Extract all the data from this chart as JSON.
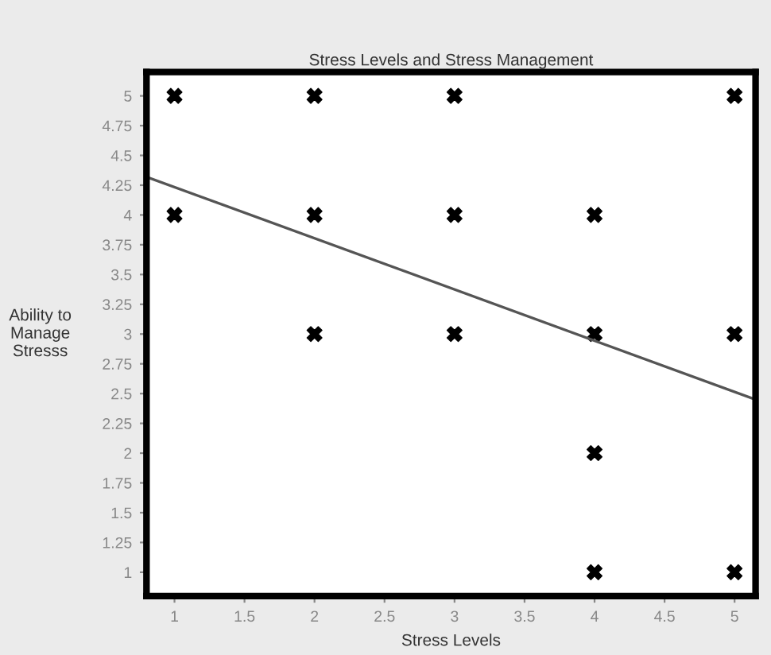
{
  "chart_data": {
    "type": "scatter",
    "title": "Stress Levels and Stress Management",
    "xlabel": "Stress Levels",
    "ylabel": "Ability to\nManage\nStresss",
    "grid": false,
    "legend": false,
    "xlim": [
      0.8,
      5.15
    ],
    "ylim": [
      0.8,
      5.2
    ],
    "xticks": [
      1,
      1.5,
      2,
      2.5,
      3,
      3.5,
      4,
      4.5,
      5
    ],
    "yticks": [
      1,
      1.25,
      1.5,
      1.75,
      2,
      2.25,
      2.5,
      2.75,
      3,
      3.25,
      3.5,
      3.75,
      4,
      4.25,
      4.5,
      4.75,
      5
    ],
    "series": [
      {
        "marker": "cross",
        "color": "#000000",
        "x": [
          1,
          2,
          3,
          5,
          1,
          2,
          3,
          4,
          2,
          3,
          4,
          5,
          4,
          4,
          5
        ],
        "values": [
          5,
          5,
          5,
          5,
          4,
          4,
          4,
          4,
          3,
          3,
          3,
          3,
          2,
          1,
          1
        ]
      },
      {
        "type": "line",
        "marker": "none",
        "color": "#555555",
        "x": [
          0.8,
          5.15
        ],
        "values": [
          4.32,
          2.45
        ]
      }
    ]
  }
}
